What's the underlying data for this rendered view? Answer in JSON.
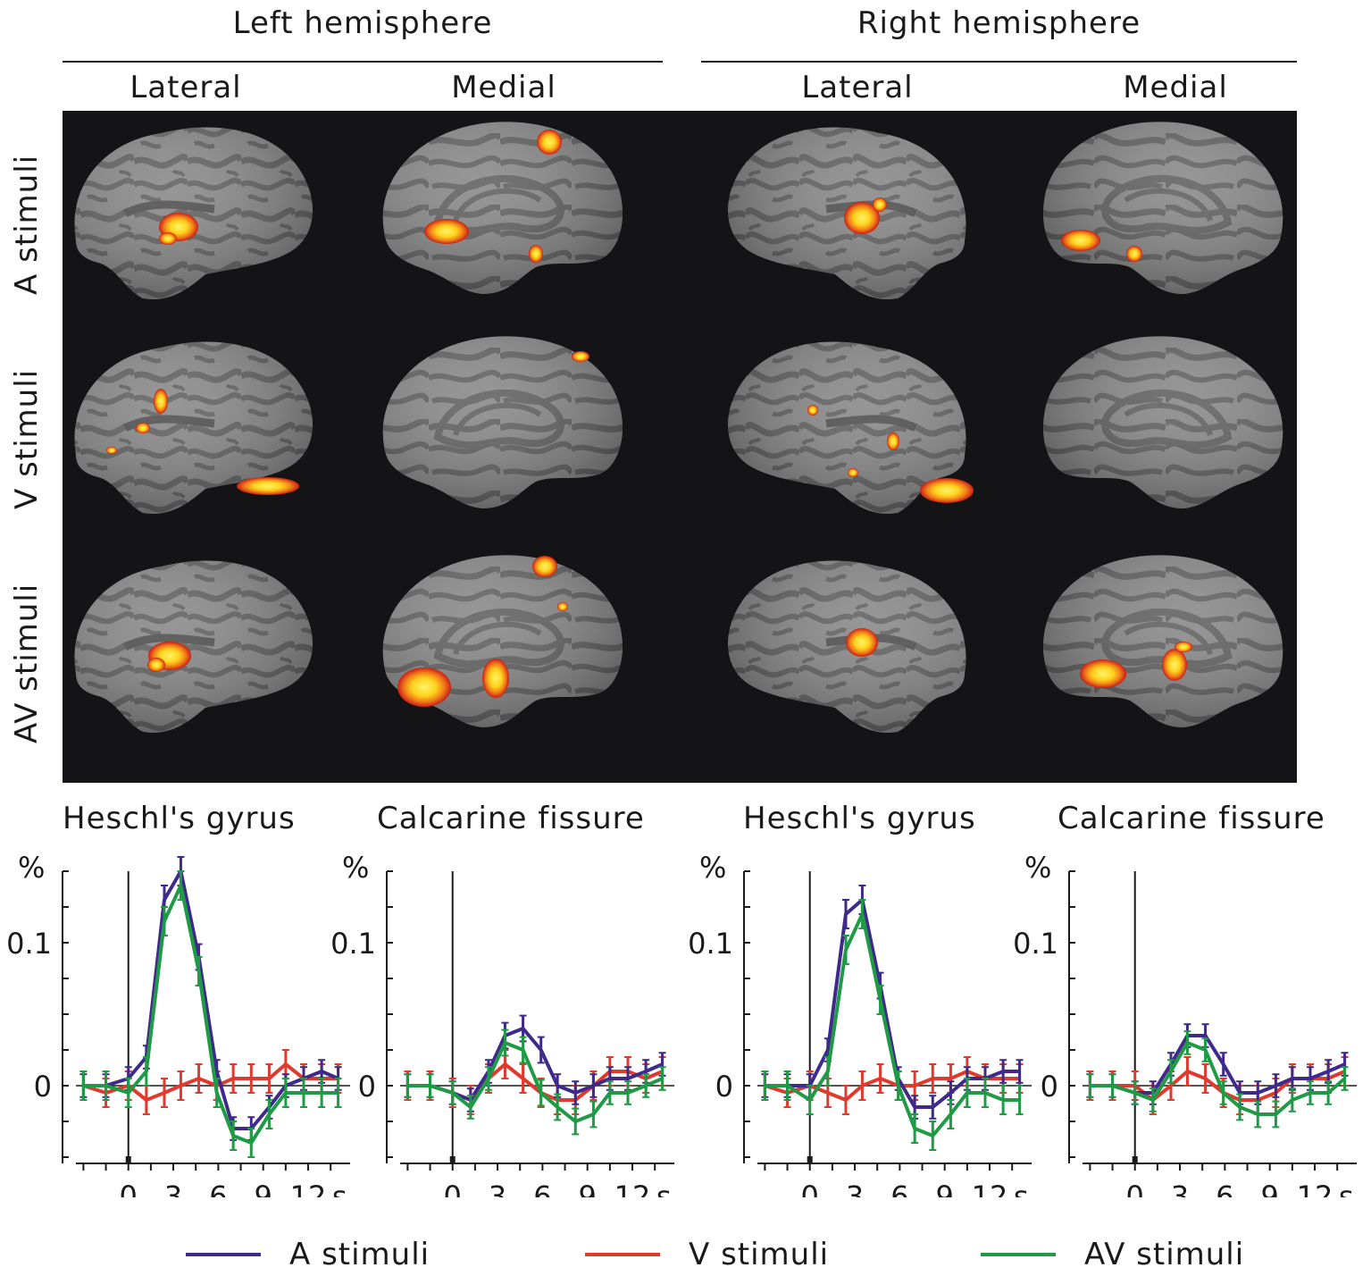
{
  "headers": {
    "left_hemisphere": "Left hemisphere",
    "right_hemisphere": "Right hemisphere",
    "columns": [
      "Lateral",
      "Medial",
      "Lateral",
      "Medial"
    ],
    "rows": [
      "A stimuli",
      "V stimuli",
      "AV stimuli"
    ]
  },
  "colors": {
    "A": "#3f2a8c",
    "V": "#e03a2e",
    "AV": "#1f9a45",
    "brain_gyri": "#8c8c8c",
    "brain_sulci": "#606060",
    "activation_hot": "#ffee44",
    "activation_mid": "#ff8a1c",
    "activation_low": "#d9261c",
    "deactivation": "#2a7fd6"
  },
  "legend": [
    {
      "key": "A",
      "label": "A stimuli"
    },
    {
      "key": "V",
      "label": "V stimuli"
    },
    {
      "key": "AV",
      "label": "AV stimuli"
    }
  ],
  "chart_data": [
    {
      "type": "line",
      "title": "Heschl's gyrus",
      "ylabel": "%",
      "xunit": "s",
      "x": [
        -3,
        -1.5,
        0,
        1.2,
        2.4,
        3.5,
        4.7,
        5.9,
        7,
        8.2,
        9.4,
        10.5,
        11.7,
        12.9,
        14
      ],
      "xticks": [
        0,
        3,
        6,
        9,
        12
      ],
      "yticks": [
        0,
        0.1
      ],
      "xlim": [
        -3.5,
        14.8
      ],
      "ylim": [
        -0.056,
        0.15
      ],
      "series": [
        {
          "key": "A",
          "values": [
            0,
            0,
            0.005,
            0.02,
            0.13,
            0.15,
            0.09,
            0.01,
            -0.03,
            -0.03,
            -0.015,
            0,
            0.005,
            0.01,
            0.005
          ],
          "errors": [
            0.008,
            0.008,
            0.008,
            0.008,
            0.01,
            0.01,
            0.009,
            0.008,
            0.008,
            0.008,
            0.008,
            0.008,
            0.008,
            0.008,
            0.008
          ]
        },
        {
          "key": "V",
          "values": [
            0,
            -0.005,
            0,
            -0.01,
            -0.005,
            0,
            0.005,
            0,
            0.005,
            0.005,
            0.005,
            0.015,
            0.005,
            0.005,
            0.005
          ],
          "errors": [
            0.01,
            0.01,
            0.01,
            0.01,
            0.01,
            0.01,
            0.01,
            0.01,
            0.01,
            0.01,
            0.01,
            0.01,
            0.01,
            0.01,
            0.01
          ]
        },
        {
          "key": "AV",
          "values": [
            0,
            0,
            -0.005,
            0.01,
            0.115,
            0.14,
            0.08,
            -0.005,
            -0.035,
            -0.04,
            -0.02,
            -0.005,
            -0.005,
            -0.005,
            -0.005
          ],
          "errors": [
            0.01,
            0.01,
            0.01,
            0.01,
            0.01,
            0.01,
            0.01,
            0.01,
            0.01,
            0.01,
            0.01,
            0.01,
            0.01,
            0.01,
            0.01
          ]
        }
      ]
    },
    {
      "type": "line",
      "title": "Calcarine fissure",
      "ylabel": "%",
      "xunit": "s",
      "x": [
        -3,
        -1.5,
        0,
        1.2,
        2.4,
        3.5,
        4.7,
        5.9,
        7,
        8.2,
        9.4,
        10.5,
        11.7,
        12.9,
        14
      ],
      "xticks": [
        0,
        3,
        6,
        9,
        12
      ],
      "yticks": [
        0,
        0.1
      ],
      "xlim": [
        -3.5,
        14.8
      ],
      "ylim": [
        -0.056,
        0.15
      ],
      "series": [
        {
          "key": "A",
          "values": [
            0,
            0,
            -0.005,
            -0.01,
            0.01,
            0.035,
            0.04,
            0.025,
            0,
            -0.005,
            0,
            0.005,
            0.005,
            0.01,
            0.015
          ],
          "errors": [
            0.008,
            0.008,
            0.008,
            0.008,
            0.008,
            0.009,
            0.009,
            0.009,
            0.008,
            0.008,
            0.008,
            0.008,
            0.008,
            0.008,
            0.008
          ]
        },
        {
          "key": "V",
          "values": [
            0,
            0,
            -0.005,
            -0.01,
            0.005,
            0.015,
            0.005,
            -0.005,
            -0.01,
            -0.01,
            0,
            0.01,
            0.01,
            0.005,
            0.01
          ],
          "errors": [
            0.01,
            0.01,
            0.01,
            0.01,
            0.01,
            0.01,
            0.01,
            0.01,
            0.01,
            0.01,
            0.01,
            0.01,
            0.01,
            0.01,
            0.01
          ]
        },
        {
          "key": "AV",
          "values": [
            0,
            0,
            -0.005,
            -0.015,
            0.005,
            0.03,
            0.025,
            -0.005,
            -0.015,
            -0.025,
            -0.02,
            -0.005,
            -0.005,
            0,
            0.005
          ],
          "errors": [
            0.008,
            0.008,
            0.008,
            0.008,
            0.008,
            0.009,
            0.009,
            0.009,
            0.009,
            0.009,
            0.009,
            0.008,
            0.008,
            0.008,
            0.008
          ]
        }
      ]
    },
    {
      "type": "line",
      "title": "Heschl's gyrus",
      "ylabel": "%",
      "xunit": "s",
      "x": [
        -3,
        -1.5,
        0,
        1.2,
        2.4,
        3.5,
        4.7,
        5.9,
        7,
        8.2,
        9.4,
        10.5,
        11.7,
        12.9,
        14
      ],
      "xticks": [
        0,
        3,
        6,
        9,
        12
      ],
      "yticks": [
        0,
        0.1
      ],
      "xlim": [
        -3.5,
        14.8
      ],
      "ylim": [
        -0.056,
        0.15
      ],
      "series": [
        {
          "key": "A",
          "values": [
            0,
            0,
            0,
            0.025,
            0.12,
            0.13,
            0.07,
            0.005,
            -0.015,
            -0.015,
            -0.005,
            0.005,
            0.005,
            0.01,
            0.01
          ],
          "errors": [
            0.008,
            0.008,
            0.008,
            0.008,
            0.01,
            0.01,
            0.009,
            0.008,
            0.008,
            0.008,
            0.008,
            0.008,
            0.008,
            0.008,
            0.008
          ]
        },
        {
          "key": "V",
          "values": [
            0,
            -0.005,
            0,
            -0.005,
            -0.01,
            0,
            0.005,
            0,
            0,
            0.005,
            0.005,
            0.01,
            0.005,
            0.005,
            0.005
          ],
          "errors": [
            0.01,
            0.01,
            0.01,
            0.01,
            0.01,
            0.01,
            0.01,
            0.01,
            0.01,
            0.01,
            0.01,
            0.01,
            0.01,
            0.01,
            0.01
          ]
        },
        {
          "key": "AV",
          "values": [
            0,
            0,
            -0.01,
            0.01,
            0.095,
            0.12,
            0.06,
            0,
            -0.03,
            -0.035,
            -0.02,
            -0.005,
            -0.005,
            -0.01,
            -0.01
          ],
          "errors": [
            0.01,
            0.01,
            0.01,
            0.01,
            0.01,
            0.01,
            0.01,
            0.01,
            0.01,
            0.01,
            0.01,
            0.01,
            0.01,
            0.01,
            0.01
          ]
        }
      ]
    },
    {
      "type": "line",
      "title": "Calcarine fissure",
      "ylabel": "%",
      "xunit": "s",
      "x": [
        -3,
        -1.5,
        0,
        1.2,
        2.4,
        3.5,
        4.7,
        5.9,
        7,
        8.2,
        9.4,
        10.5,
        11.7,
        12.9,
        14
      ],
      "xticks": [
        0,
        3,
        6,
        9,
        12
      ],
      "yticks": [
        0,
        0.1
      ],
      "xlim": [
        -3.5,
        14.8
      ],
      "ylim": [
        -0.056,
        0.15
      ],
      "series": [
        {
          "key": "A",
          "values": [
            0,
            0,
            -0.005,
            -0.005,
            0.015,
            0.035,
            0.035,
            0.015,
            -0.005,
            -0.005,
            0,
            0.005,
            0.005,
            0.01,
            0.015
          ],
          "errors": [
            0.008,
            0.008,
            0.008,
            0.008,
            0.008,
            0.008,
            0.008,
            0.008,
            0.008,
            0.008,
            0.008,
            0.008,
            0.008,
            0.008,
            0.008
          ]
        },
        {
          "key": "V",
          "values": [
            0,
            0,
            0,
            -0.01,
            0,
            0.01,
            0.005,
            -0.005,
            -0.01,
            -0.01,
            -0.005,
            0.005,
            0.005,
            0.005,
            0.01
          ],
          "errors": [
            0.01,
            0.01,
            0.01,
            0.01,
            0.01,
            0.01,
            0.01,
            0.01,
            0.01,
            0.01,
            0.01,
            0.01,
            0.01,
            0.01,
            0.01
          ]
        },
        {
          "key": "AV",
          "values": [
            0,
            0,
            -0.005,
            -0.01,
            0.01,
            0.03,
            0.025,
            -0.005,
            -0.015,
            -0.02,
            -0.02,
            -0.01,
            -0.005,
            -0.005,
            0.005
          ],
          "errors": [
            0.008,
            0.008,
            0.008,
            0.008,
            0.008,
            0.008,
            0.008,
            0.008,
            0.009,
            0.009,
            0.009,
            0.008,
            0.008,
            0.008,
            0.008
          ]
        }
      ]
    }
  ]
}
